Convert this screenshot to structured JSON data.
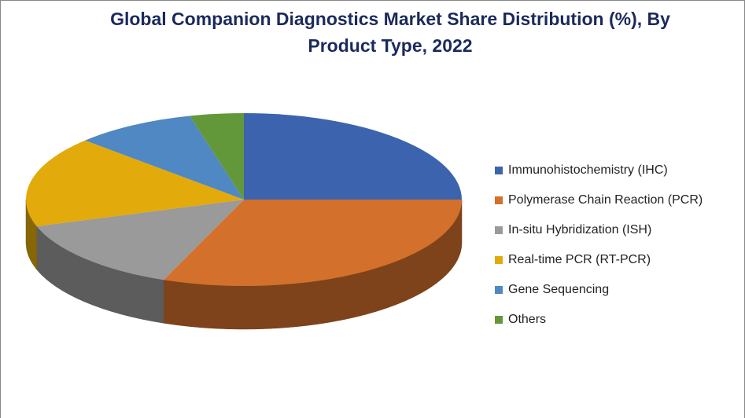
{
  "chart_data": {
    "type": "pie3d",
    "title": "Global Companion Diagnostics Market Share Distribution (%), By Product Type, 2022",
    "categories": [
      "Immunohistochemistry (IHC)",
      "Polymerase Chain Reaction (PCR)",
      "In-situ Hybridization (ISH)",
      "Real-time PCR (RT-PCR)",
      "Gene Sequencing",
      "Others"
    ],
    "values": [
      25,
      31,
      14,
      17,
      9,
      4
    ],
    "colors": [
      "#3c64ae",
      "#d2702c",
      "#9a9a9a",
      "#e2aa0a",
      "#4f88c2",
      "#62983a"
    ],
    "legend": "right"
  }
}
